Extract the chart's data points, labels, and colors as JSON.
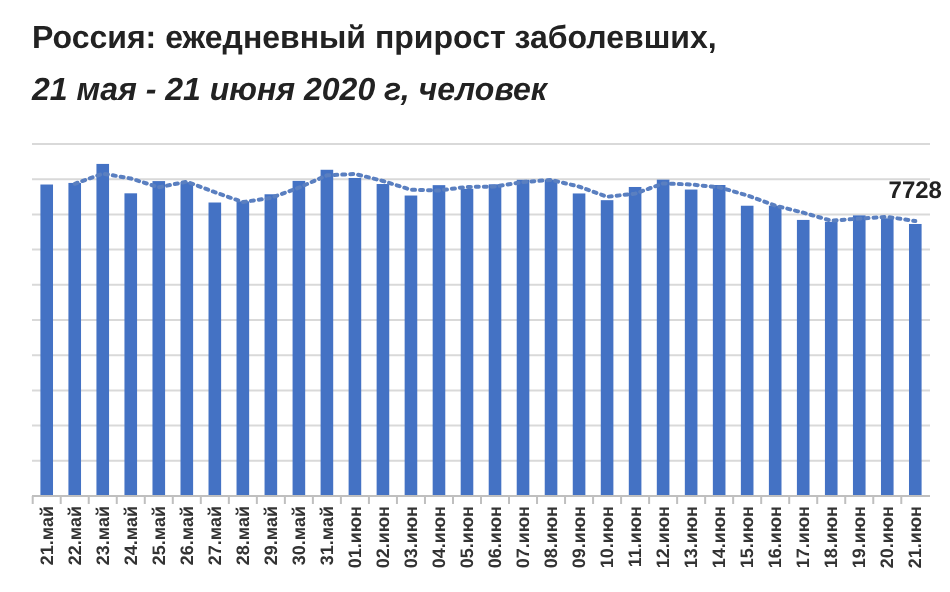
{
  "chart_data": {
    "type": "bar",
    "title": "Россия: ежедневный прирост заболевших,",
    "subtitle": "21 мая - 21 июня 2020 г, человек",
    "categories": [
      "21.май",
      "22.май",
      "23.май",
      "24.май",
      "25.май",
      "26.май",
      "27.май",
      "28.май",
      "29.май",
      "30.май",
      "31.май",
      "01.июн",
      "02.июн",
      "03.июн",
      "04.июн",
      "05.июн",
      "06.июн",
      "07.июн",
      "08.июн",
      "09.июн",
      "10.июн",
      "11.июн",
      "12.июн",
      "13.июн",
      "14.июн",
      "15.июн",
      "16.июн",
      "17.июн",
      "18.июн",
      "19.июн",
      "20.июн",
      "21.июн"
    ],
    "series": [
      {
        "color": "#4472c4",
        "values": [
          8849,
          8894,
          9434,
          8599,
          8946,
          8915,
          8338,
          8371,
          8572,
          8952,
          9268,
          9035,
          8863,
          8536,
          8831,
          8726,
          8855,
          8984,
          8985,
          8595,
          8404,
          8779,
          8987,
          8706,
          8835,
          8246,
          8248,
          7843,
          7790,
          7972,
          7889,
          7728
        ],
        "value_labels": [
          null,
          null,
          null,
          null,
          null,
          null,
          null,
          null,
          null,
          null,
          null,
          null,
          null,
          null,
          null,
          null,
          null,
          null,
          null,
          null,
          null,
          null,
          null,
          null,
          null,
          null,
          null,
          null,
          null,
          null,
          null,
          "7728"
        ]
      },
      {
        "type": "line",
        "color": "#5a7fc0",
        "line_style": "dotted",
        "values": [
          null,
          8870,
          9160,
          9020,
          8770,
          8930,
          8630,
          8350,
          8470,
          8760,
          9110,
          9150,
          8950,
          8700,
          8680,
          8780,
          8790,
          8920,
          8980,
          8790,
          8500,
          8590,
          8880,
          8850,
          8770,
          8540,
          8250,
          8050,
          7820,
          7880,
          7930,
          7810
        ]
      }
    ],
    "ylim": [
      0,
      10000
    ],
    "yticks": [
      {
        "value": 0,
        "label": null
      },
      {
        "value": 1000,
        "label": null
      },
      {
        "value": 2000,
        "label": null
      },
      {
        "value": 3000,
        "label": null
      },
      {
        "value": 4000,
        "label": null
      },
      {
        "value": 5000,
        "label": null
      },
      {
        "value": 6000,
        "label": null
      },
      {
        "value": 7000,
        "label": null
      },
      {
        "value": 8000,
        "label": null
      },
      {
        "value": 9000,
        "label": null
      },
      {
        "value": 10000,
        "label": null
      }
    ],
    "tick_labels": "x",
    "grid": "y"
  }
}
